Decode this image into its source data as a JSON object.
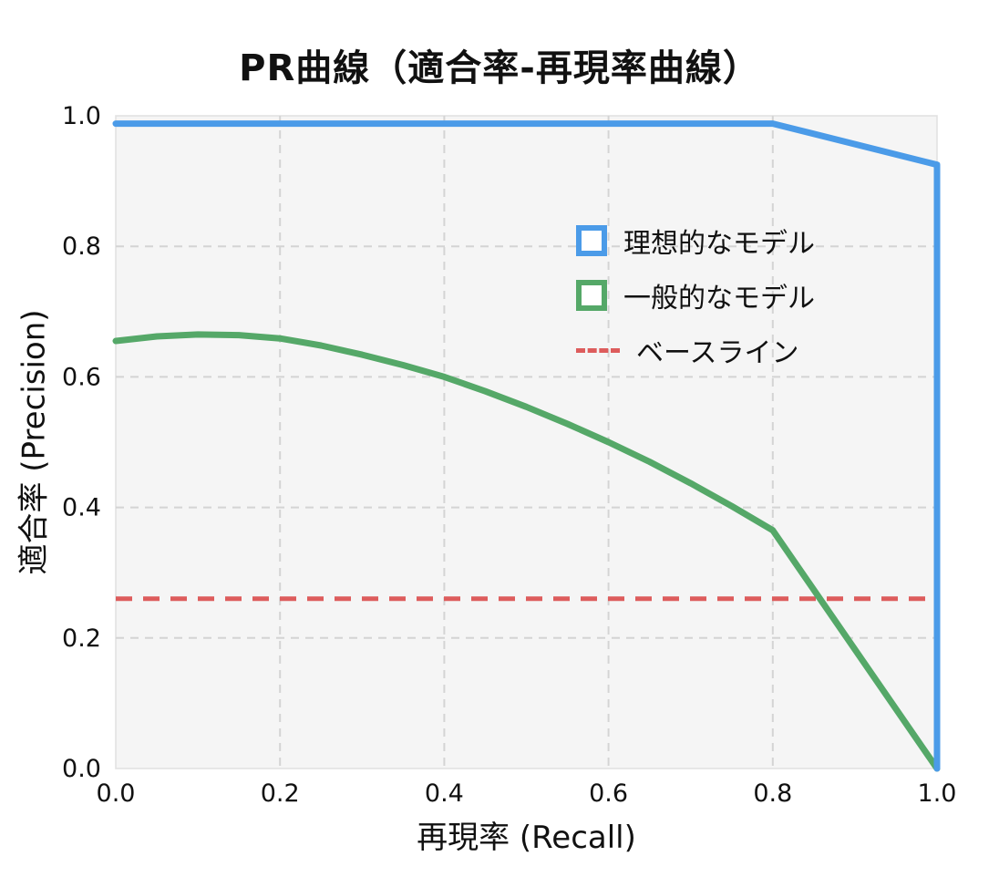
{
  "chart_data": {
    "type": "line",
    "title": "PR曲線（適合率-再現率曲線）",
    "xlabel": "再現率 (Recall)",
    "ylabel": "適合率 (Precision)",
    "xlim": [
      0,
      1
    ],
    "ylim": [
      0,
      1
    ],
    "xticks": [
      0,
      0.2,
      0.4,
      0.6,
      0.8,
      1.0
    ],
    "xtick_labels": [
      "0.0",
      "0.2",
      "0.4",
      "0.6",
      "0.8",
      "1.0"
    ],
    "yticks": [
      0,
      0.2,
      0.4,
      0.6,
      0.8,
      1.0
    ],
    "ytick_labels": [
      "0.0",
      "0.2",
      "0.4",
      "0.6",
      "0.8",
      "1.0"
    ],
    "grid": true,
    "grid_color": "#d4d4d4",
    "plot_background": "#f5f5f5",
    "plot_border_color": "#e0e0e0",
    "legend_position": "center-right",
    "series": [
      {
        "name": "理想的なモデル",
        "color": "#4b9be8",
        "line_style": "solid",
        "line_width": 7,
        "points": [
          [
            0,
            0.988
          ],
          [
            0.8,
            0.988
          ],
          [
            1.0,
            0.925
          ],
          [
            1.0,
            0.0
          ]
        ]
      },
      {
        "name": "一般的なモデル",
        "color": "#55a868",
        "line_style": "solid",
        "line_width": 7,
        "points": [
          [
            0,
            0.655
          ],
          [
            0.05,
            0.662
          ],
          [
            0.1,
            0.665
          ],
          [
            0.15,
            0.664
          ],
          [
            0.2,
            0.659
          ],
          [
            0.25,
            0.648
          ],
          [
            0.3,
            0.634
          ],
          [
            0.35,
            0.618
          ],
          [
            0.4,
            0.6
          ],
          [
            0.45,
            0.578
          ],
          [
            0.5,
            0.554
          ],
          [
            0.55,
            0.528
          ],
          [
            0.6,
            0.5
          ],
          [
            0.65,
            0.47
          ],
          [
            0.7,
            0.437
          ],
          [
            0.75,
            0.402
          ],
          [
            0.8,
            0.365
          ],
          [
            1.0,
            0.0
          ]
        ]
      },
      {
        "name": "ベースライン",
        "color": "#dd5c5c",
        "line_style": "dashed",
        "line_width": 5,
        "points": [
          [
            0,
            0.26
          ],
          [
            1.0,
            0.26
          ]
        ]
      }
    ]
  }
}
